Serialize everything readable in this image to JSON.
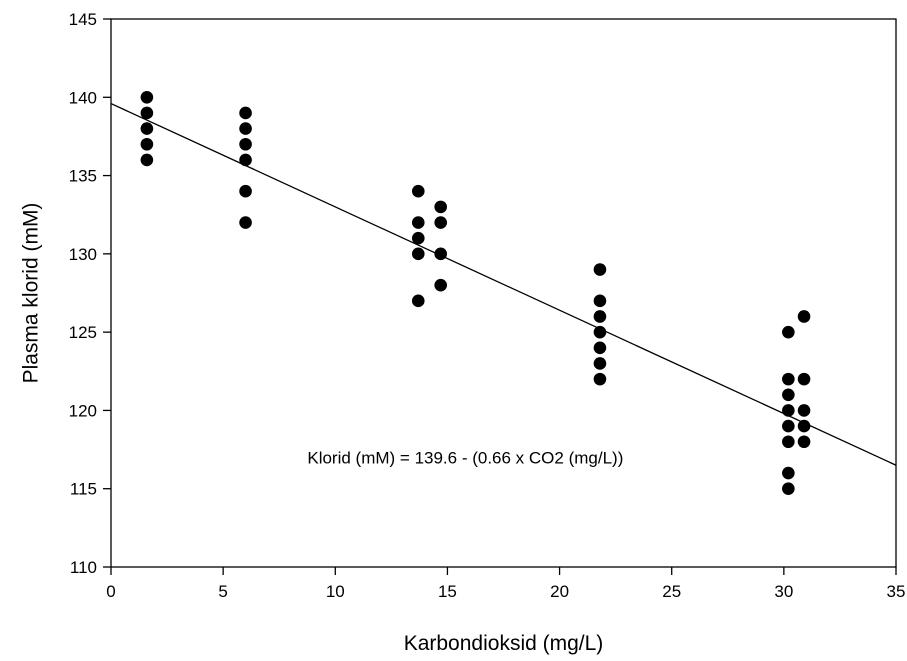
{
  "chart_data": {
    "type": "scatter",
    "title": "",
    "xlabel": "Karbondioksid (mg/L)",
    "ylabel": "Plasma klorid (mM)",
    "xlim": [
      0,
      35
    ],
    "ylim": [
      110,
      145
    ],
    "xticks": [
      0,
      5,
      10,
      15,
      20,
      25,
      30,
      35
    ],
    "yticks": [
      110,
      115,
      120,
      125,
      130,
      135,
      140,
      145
    ],
    "grid": false,
    "series": [
      {
        "points": [
          [
            1.6,
            140
          ],
          [
            1.6,
            139
          ],
          [
            1.6,
            138
          ],
          [
            1.6,
            137
          ],
          [
            1.6,
            136
          ],
          [
            6.0,
            139
          ],
          [
            6.0,
            138
          ],
          [
            6.0,
            137
          ],
          [
            6.0,
            136
          ],
          [
            6.0,
            134
          ],
          [
            6.0,
            132
          ],
          [
            13.7,
            134
          ],
          [
            13.7,
            132
          ],
          [
            13.7,
            131
          ],
          [
            13.7,
            130
          ],
          [
            13.7,
            127
          ],
          [
            14.7,
            133
          ],
          [
            14.7,
            132
          ],
          [
            14.7,
            130
          ],
          [
            14.7,
            128
          ],
          [
            21.8,
            129
          ],
          [
            21.8,
            127
          ],
          [
            21.8,
            126
          ],
          [
            21.8,
            125
          ],
          [
            21.8,
            124
          ],
          [
            21.8,
            123
          ],
          [
            21.8,
            122
          ],
          [
            30.2,
            125
          ],
          [
            30.2,
            122
          ],
          [
            30.2,
            121
          ],
          [
            30.2,
            120
          ],
          [
            30.2,
            119
          ],
          [
            30.2,
            118
          ],
          [
            30.2,
            116
          ],
          [
            30.2,
            115
          ],
          [
            30.9,
            126
          ],
          [
            30.9,
            122
          ],
          [
            30.9,
            120
          ],
          [
            30.9,
            119
          ],
          [
            30.9,
            118
          ]
        ]
      }
    ],
    "regression": {
      "intercept": 139.6,
      "slope": -0.66
    },
    "annotation": {
      "text": "Klorid (mM) = 139.6 - (0.66 x CO2 (mg/L))",
      "x": 15.8,
      "y": 117
    }
  }
}
